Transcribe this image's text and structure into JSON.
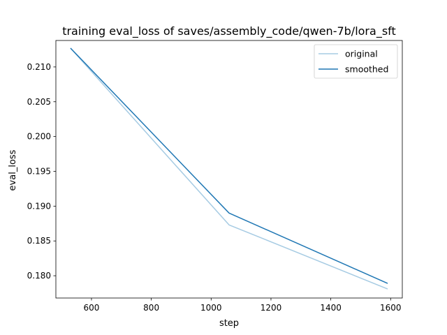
{
  "chart_data": {
    "type": "line",
    "title": "training eval_loss of saves/assembly_code/qwen-7b/lora_sft",
    "xlabel": "step",
    "ylabel": "eval_loss",
    "xlim": [
      481,
      1639
    ],
    "ylim": [
      0.1768,
      0.2138
    ],
    "x_ticks": [
      600,
      800,
      1000,
      1200,
      1400,
      1600
    ],
    "x_tick_labels": [
      "600",
      "800",
      "1000",
      "1200",
      "1400",
      "1600"
    ],
    "y_ticks": [
      0.18,
      0.185,
      0.19,
      0.195,
      0.2,
      0.205,
      0.21
    ],
    "y_tick_labels": [
      "0.180",
      "0.185",
      "0.190",
      "0.195",
      "0.200",
      "0.205",
      "0.210"
    ],
    "grid": false,
    "legend_position": "top-right",
    "series": [
      {
        "name": "original",
        "color": "#a6cbe3",
        "x": [
          530,
          1060,
          1590
        ],
        "y": [
          0.2127,
          0.1873,
          0.1781
        ]
      },
      {
        "name": "smoothed",
        "color": "#1f77b4",
        "x": [
          530,
          1060,
          1590
        ],
        "y": [
          0.2127,
          0.189,
          0.1789
        ]
      }
    ]
  }
}
